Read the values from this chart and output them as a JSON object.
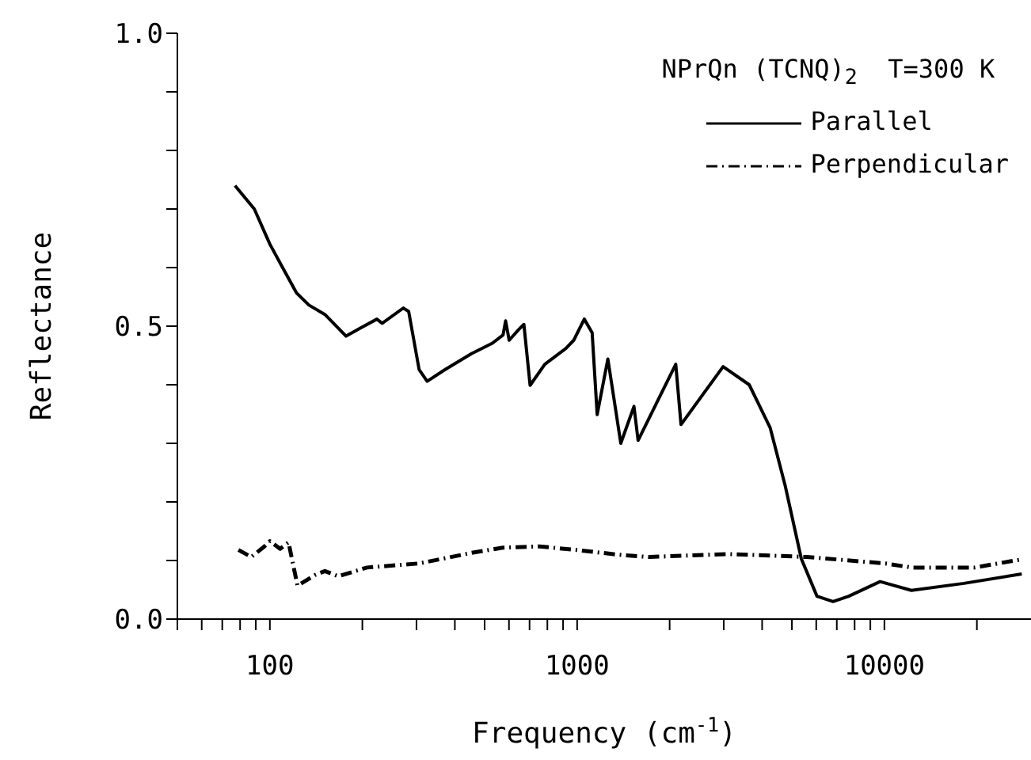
{
  "chart_data": {
    "type": "line",
    "xlabel": "Frequency (cm$^{-1}$)",
    "ylabel": "Reflectance",
    "legend_title": "NPrQn (TCNQ)$_{2}$  T=300 K",
    "log": "x",
    "xlim": [
      50,
      30000
    ],
    "ylim": [
      0,
      1
    ],
    "xticks": [
      {
        "value": 50,
        "label": null
      },
      {
        "value": 60,
        "label": null
      },
      {
        "value": 70,
        "label": null
      },
      {
        "value": 80,
        "label": null
      },
      {
        "value": 90,
        "label": null
      },
      100,
      {
        "value": 200,
        "label": null
      },
      {
        "value": 300,
        "label": null
      },
      {
        "value": 400,
        "label": null
      },
      {
        "value": 500,
        "label": null
      },
      {
        "value": 600,
        "label": null
      },
      {
        "value": 700,
        "label": null
      },
      {
        "value": 800,
        "label": null
      },
      {
        "value": 900,
        "label": null
      },
      1000,
      {
        "value": 2000,
        "label": null
      },
      {
        "value": 3000,
        "label": null
      },
      {
        "value": 4000,
        "label": null
      },
      {
        "value": 5000,
        "label": null
      },
      {
        "value": 6000,
        "label": null
      },
      {
        "value": 7000,
        "label": null
      },
      {
        "value": 8000,
        "label": null
      },
      {
        "value": 9000,
        "label": null
      },
      10000,
      {
        "value": 20000,
        "label": null
      }
    ],
    "yticks": [
      {
        "value": 0,
        "label": "0.0"
      },
      {
        "value": 0.1,
        "label": null
      },
      {
        "value": 0.2,
        "label": null
      },
      {
        "value": 0.3,
        "label": null
      },
      {
        "value": 0.4,
        "label": null
      },
      0.5,
      {
        "value": 0.6,
        "label": null
      },
      {
        "value": 0.7,
        "label": null
      },
      {
        "value": 0.8,
        "label": null
      },
      {
        "value": 0.9,
        "label": null
      },
      {
        "value": 1,
        "label": "1.0"
      }
    ],
    "grid": false,
    "legend": "top right",
    "marker": "none",
    "series": [
      {
        "name": "Parallel",
        "color": "#000000",
        "line_style": "solid",
        "x": [
          77,
          89,
          100,
          110,
          122,
          134,
          151,
          177,
          199,
          223,
          232,
          272,
          283,
          306,
          325,
          372,
          453,
          530,
          574,
          585,
          601,
          645,
          671,
          703,
          785,
          919,
          975,
          1055,
          1119,
          1162,
          1259,
          1387,
          1531,
          1579,
          2094,
          2178,
          2986,
          3631,
          4246,
          4753,
          5365,
          6034,
          6808,
          7656,
          9684,
          12250,
          18150,
          27990
        ],
        "values": [
          0.74,
          0.7,
          0.64,
          0.6,
          0.557,
          0.536,
          0.52,
          0.483,
          0.498,
          0.512,
          0.505,
          0.531,
          0.525,
          0.426,
          0.406,
          0.426,
          0.453,
          0.471,
          0.485,
          0.509,
          0.476,
          0.494,
          0.503,
          0.399,
          0.435,
          0.462,
          0.476,
          0.512,
          0.489,
          0.349,
          0.444,
          0.3,
          0.363,
          0.305,
          0.435,
          0.332,
          0.431,
          0.4,
          0.327,
          0.228,
          0.103,
          0.039,
          0.03,
          0.039,
          0.064,
          0.049,
          0.061,
          0.077
        ]
      },
      {
        "name": "Perpendicular",
        "color": "#000000",
        "line_style": "dashed",
        "x": [
          79,
          87,
          96,
          100,
          108,
          115,
          123,
          140,
          151,
          167,
          207,
          306,
          453,
          574,
          755,
          993,
          1415,
          1722,
          3105,
          5585,
          10070,
          12250,
          19620,
          27990
        ],
        "values": [
          0.118,
          0.106,
          0.124,
          0.133,
          0.12,
          0.131,
          0.057,
          0.075,
          0.082,
          0.073,
          0.088,
          0.095,
          0.113,
          0.122,
          0.124,
          0.118,
          0.109,
          0.106,
          0.111,
          0.106,
          0.095,
          0.088,
          0.088,
          0.102
        ]
      }
    ]
  }
}
